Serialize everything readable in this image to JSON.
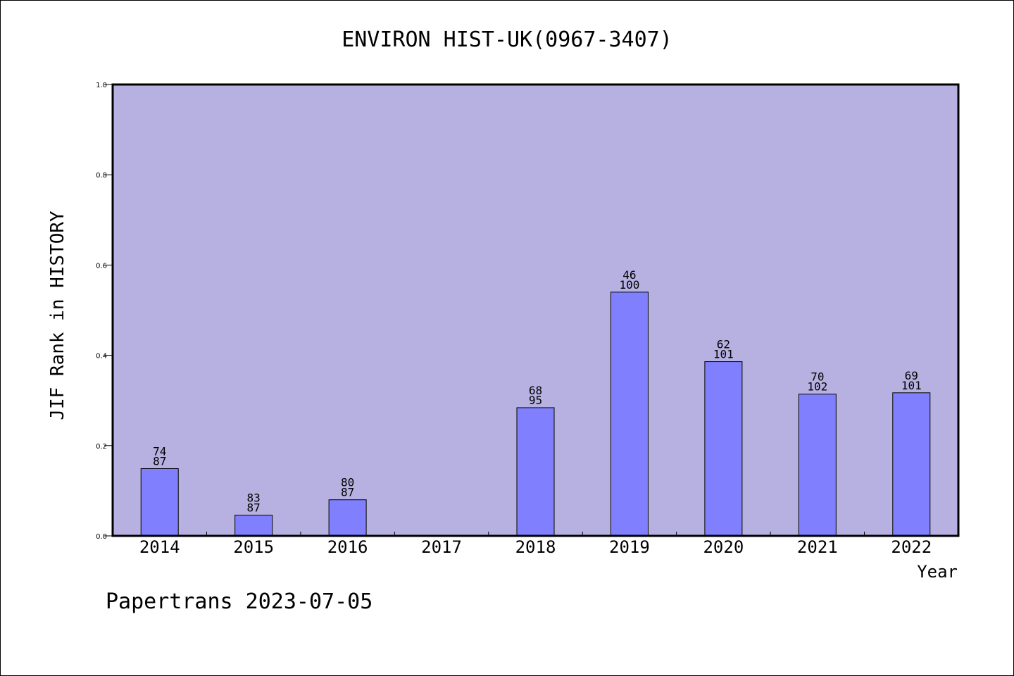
{
  "chart_data": {
    "type": "bar",
    "title": "ENVIRON HIST-UK(0967-3407)",
    "xlabel": "Year",
    "ylabel": "JIF Rank in HISTORY",
    "ylim": [
      0,
      1.0
    ],
    "yticks": [
      "0.0",
      "0.2",
      "0.4",
      "0.6",
      "0.8",
      "1.0"
    ],
    "categories": [
      "2014",
      "2015",
      "2016",
      "2017",
      "2018",
      "2019",
      "2020",
      "2021",
      "2022"
    ],
    "values": [
      0.149,
      0.046,
      0.08,
      null,
      0.284,
      0.54,
      0.386,
      0.314,
      0.317
    ],
    "rank": [
      "74",
      "83",
      "80",
      "",
      "68",
      "46",
      "62",
      "70",
      "69"
    ],
    "total": [
      "87",
      "87",
      "87",
      "",
      "95",
      "100",
      "101",
      "102",
      "101"
    ],
    "grid": false,
    "colors": {
      "plot_bg": "#b7b1e2",
      "bar": "#8080ff",
      "axis": "#000000"
    }
  },
  "footer": "Papertrans 2023-07-05"
}
